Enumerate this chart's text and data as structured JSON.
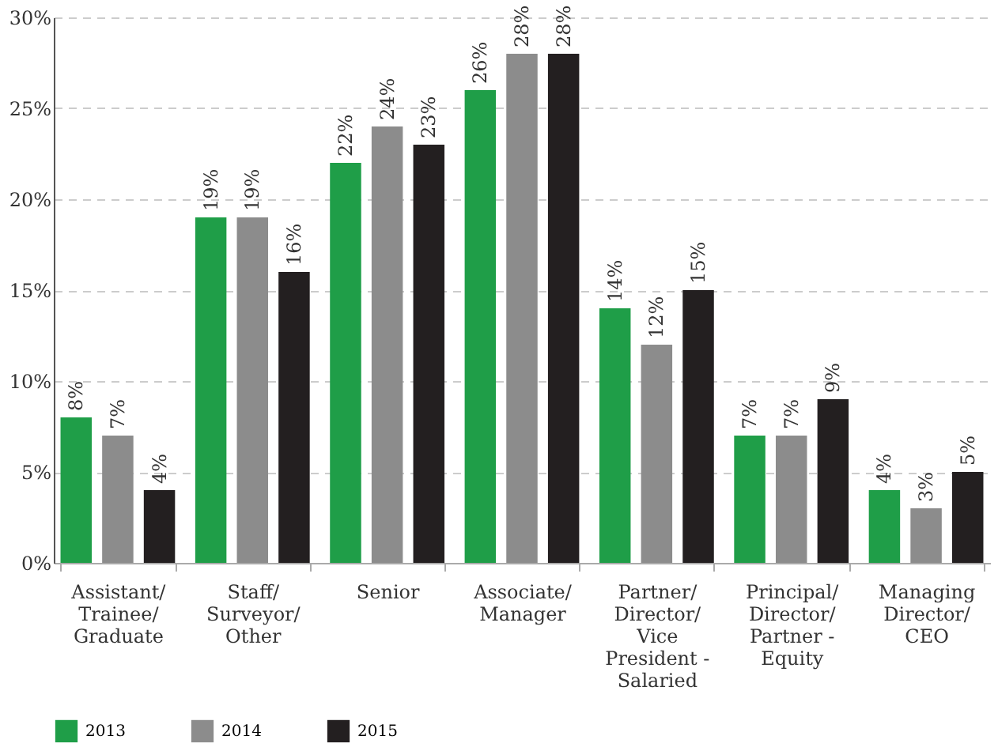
{
  "chart_data": {
    "type": "bar",
    "categories": [
      "Assistant/ Trainee/ Graduate",
      "Staff/ Surveyor/ Other",
      "Senior",
      "Associate/ Manager",
      "Partner/ Director/ Vice President - Salaried",
      "Principal/ Director/ Partner - Equity",
      "Managing Director/ CEO"
    ],
    "series": [
      {
        "name": "2013",
        "color": "#1f9e48",
        "values": [
          8,
          19,
          22,
          26,
          14,
          7,
          4
        ],
        "value_labels": [
          "8%",
          "19%",
          "22%",
          "26%",
          "14%",
          "7%",
          "4%"
        ]
      },
      {
        "name": "2014",
        "color": "#8c8c8c",
        "values": [
          7,
          19,
          24,
          28,
          12,
          7,
          3
        ],
        "value_labels": [
          "7%",
          "19%",
          "24%",
          "28%",
          "12%",
          "7%",
          "3%"
        ]
      },
      {
        "name": "2015",
        "color": "#231f20",
        "values": [
          4,
          16,
          23,
          28,
          15,
          9,
          5
        ],
        "value_labels": [
          "4%",
          "16%",
          "23%",
          "28%",
          "15%",
          "9%",
          "5%"
        ]
      }
    ],
    "ylim": [
      0,
      30
    ],
    "yticks": [
      {
        "value": 0,
        "label": "0%"
      },
      {
        "value": 5,
        "label": "5%"
      },
      {
        "value": 10,
        "label": "10%"
      },
      {
        "value": 15,
        "label": "15%"
      },
      {
        "value": 20,
        "label": "20%"
      },
      {
        "value": 25,
        "label": "25%"
      },
      {
        "value": 30,
        "label": "30%"
      }
    ],
    "grid": "y",
    "legend": "bottom left"
  }
}
